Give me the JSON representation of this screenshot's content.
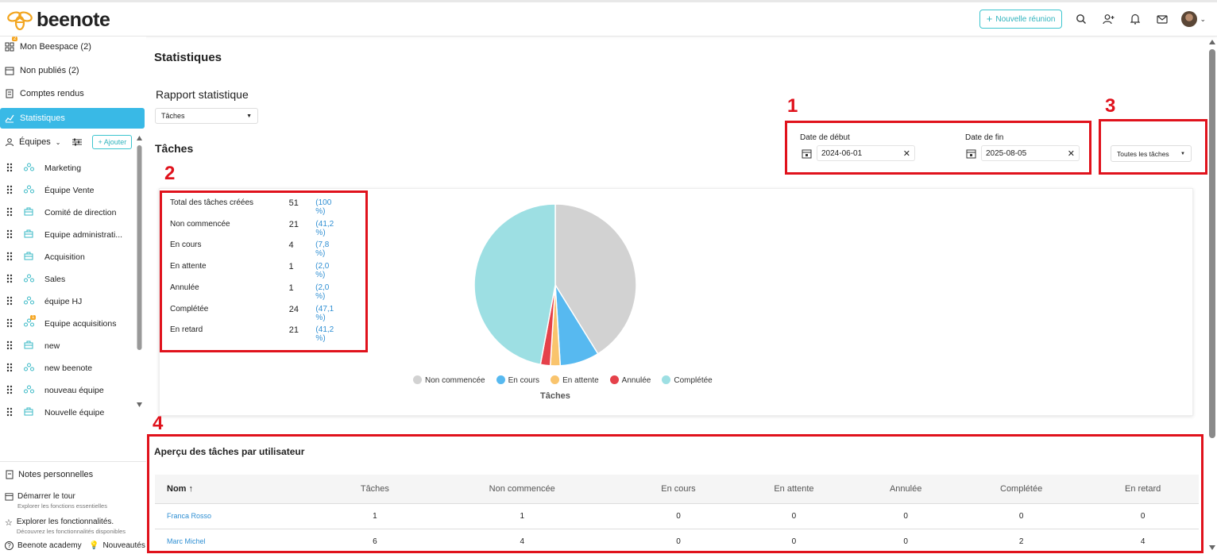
{
  "header": {
    "brand": "beenote",
    "new_meeting_label": "Nouvelle réunion",
    "accent": "#3cc5cf"
  },
  "sidebar": {
    "items": [
      {
        "label": "Mon Beespace (2)",
        "badge": "2"
      },
      {
        "label": "Non publiés (2)"
      },
      {
        "label": "Comptes rendus"
      },
      {
        "label": "Statistiques"
      }
    ],
    "teams_label": "Équipes",
    "add_label": "Ajouter",
    "teams": [
      {
        "name": "Marketing",
        "icon": "team-icon"
      },
      {
        "name": "Équipe Vente",
        "icon": "team-icon"
      },
      {
        "name": "Comité de direction",
        "icon": "briefcase-icon"
      },
      {
        "name": "Equipe administrati...",
        "icon": "briefcase-icon"
      },
      {
        "name": "Acquisition",
        "icon": "briefcase-icon"
      },
      {
        "name": "Sales",
        "icon": "team-icon"
      },
      {
        "name": "équipe HJ",
        "icon": "team-icon"
      },
      {
        "name": "Equipe acquisitions",
        "icon": "team-icon",
        "badge": "1"
      },
      {
        "name": "new",
        "icon": "briefcase-icon"
      },
      {
        "name": "new beenote",
        "icon": "team-icon"
      },
      {
        "name": "nouveau équipe",
        "icon": "team-icon"
      },
      {
        "name": "Nouvelle équipe",
        "icon": "briefcase-icon"
      }
    ],
    "footer": {
      "notes": "Notes personnelles",
      "tour_title": "Démarrer le tour",
      "tour_sub": "Explorer les fonctions essentielles",
      "features_title": "Explorer les fonctionnalités.",
      "features_sub": "Découvrez les fonctionnalités disponibles",
      "academy": "Beenote academy",
      "news": "Nouveautés"
    }
  },
  "page": {
    "title": "Statistiques",
    "report_title": "Rapport statistique",
    "report_select": "Tâches",
    "section_title": "Tâches",
    "start_label": "Date de début",
    "start_value": "2024-06-01",
    "end_label": "Date de fin",
    "end_value": "2025-08-05",
    "filter_select": "Toutes les tâches",
    "annotations": [
      "1",
      "2",
      "3",
      "4"
    ]
  },
  "stats": [
    {
      "label": "Total des tâches créées",
      "count": "51",
      "pct": "(100 %)"
    },
    {
      "label": "Non commencée",
      "count": "21",
      "pct": "(41,2 %)"
    },
    {
      "label": "En cours",
      "count": "4",
      "pct": "(7,8 %)"
    },
    {
      "label": "En attente",
      "count": "1",
      "pct": "(2,0 %)"
    },
    {
      "label": "Annulée",
      "count": "1",
      "pct": "(2,0 %)"
    },
    {
      "label": "Complétée",
      "count": "24",
      "pct": "(47,1 %)"
    },
    {
      "label": "En retard",
      "count": "21",
      "pct": "(41,2 %)"
    }
  ],
  "chart_data": {
    "type": "pie",
    "title": "Tâches",
    "categories": [
      "Non commencée",
      "En cours",
      "En attente",
      "Annulée",
      "Complétée"
    ],
    "values": [
      21,
      4,
      1,
      1,
      24
    ],
    "colors": [
      "#d2d2d2",
      "#57b9f0",
      "#f9c46d",
      "#e5414a",
      "#9ddfe3"
    ],
    "legend": "bottom"
  },
  "user_table": {
    "title": "Aperçu des tâches par utilisateur",
    "columns": [
      "Nom ↑",
      "Tâches",
      "Non commencée",
      "En cours",
      "En attente",
      "Annulée",
      "Complétée",
      "En retard"
    ],
    "rows": [
      [
        "Franca Rosso",
        "1",
        "1",
        "0",
        "0",
        "0",
        "0",
        "0"
      ],
      [
        "Marc Michel",
        "6",
        "4",
        "0",
        "0",
        "0",
        "2",
        "4"
      ]
    ]
  }
}
